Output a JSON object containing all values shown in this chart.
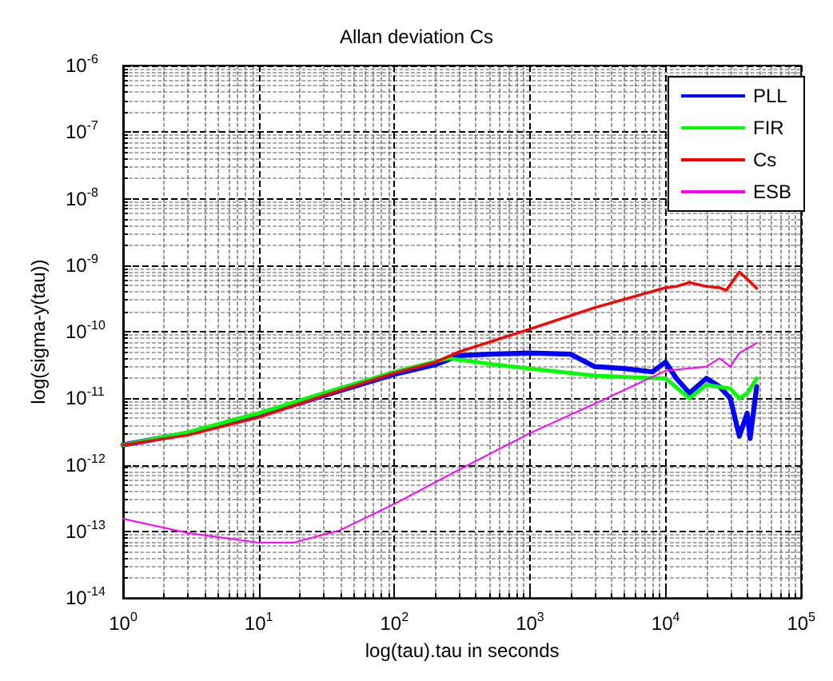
{
  "chart_data": {
    "type": "line",
    "title": "Allan deviation Cs",
    "xlabel": "log(tau).tau in seconds",
    "ylabel": "log(sigma-y(tau))",
    "log": "xy",
    "grid": true,
    "legend": "top right",
    "line_style": "solid",
    "marker": "none",
    "xlim": [
      1,
      100000
    ],
    "xticks": [
      {
        "value": 1,
        "label": "10$^{0}$"
      },
      {
        "value": 10,
        "label": "10$^{1}$"
      },
      {
        "value": 100,
        "label": "10$^{2}$"
      },
      {
        "value": 1000,
        "label": "10$^{3}$"
      },
      {
        "value": 10000,
        "label": "10$^{4}$"
      },
      {
        "value": 100000,
        "label": "10$^{5}$"
      }
    ],
    "ylim": [
      1e-14,
      1e-06
    ],
    "yticks": [
      {
        "value": 1e-14,
        "label": "10$^{-14}$"
      },
      {
        "value": 1e-13,
        "label": "10$^{-13}$"
      },
      {
        "value": 1e-12,
        "label": "10$^{-12}$"
      },
      {
        "value": 1e-11,
        "label": "10$^{-11}$"
      },
      {
        "value": 1e-10,
        "label": "10$^{-10}$"
      },
      {
        "value": 1e-09,
        "label": "10$^{-9}$"
      },
      {
        "value": 1e-08,
        "label": "10$^{-8}$"
      },
      {
        "value": 1e-07,
        "label": "10$^{-7}$"
      },
      {
        "value": 1e-06,
        "label": "10$^{-6}$"
      }
    ],
    "series": [
      {
        "name": "PLL",
        "color": "#0000ff",
        "x": [
          1,
          3,
          10,
          30,
          100,
          200,
          300,
          500,
          1000,
          2000,
          3000,
          5000,
          8000,
          10000,
          12000,
          15000,
          20000,
          25000,
          30000,
          35000,
          40000,
          42000,
          47000
        ],
        "values": [
          2e-12,
          3e-12,
          5.5e-12,
          1.1e-11,
          2.3e-11,
          3.2e-11,
          4.4e-11,
          4.6e-11,
          4.8e-11,
          4.6e-11,
          3e-11,
          2.8e-11,
          2.5e-11,
          3.5e-11,
          2e-11,
          1.2e-11,
          2e-11,
          1.5e-11,
          1e-11,
          2.7e-12,
          6e-12,
          2.5e-12,
          1.5e-11
        ]
      },
      {
        "name": "FIR",
        "color": "#00ff00",
        "x": [
          1,
          3,
          10,
          30,
          100,
          250,
          500,
          1000,
          3000,
          5000,
          10000,
          15000,
          20000,
          30000,
          35000,
          40000,
          47000
        ],
        "values": [
          2e-12,
          3.1e-12,
          6e-12,
          1.2e-11,
          2.5e-11,
          4e-11,
          3.3e-11,
          2.8e-11,
          2.2e-11,
          2.1e-11,
          2e-11,
          1e-11,
          1.6e-11,
          1.4e-11,
          1e-11,
          1.2e-11,
          2e-11
        ]
      },
      {
        "name": "Cs",
        "color": "#ff0000",
        "x": [
          1,
          3,
          10,
          30,
          100,
          200,
          300,
          1000,
          3000,
          10000,
          12000,
          15000,
          20000,
          25000,
          28000,
          35000,
          40000,
          47000
        ],
        "values": [
          2e-12,
          2.8e-12,
          5.2e-12,
          1.1e-11,
          2.4e-11,
          3.5e-11,
          5e-11,
          1.1e-10,
          2.3e-10,
          4.6e-10,
          4.8e-10,
          5.5e-10,
          4.8e-10,
          4.6e-10,
          4.2e-10,
          7.9e-10,
          6.2e-10,
          4.5e-10
        ]
      },
      {
        "name": "ESB",
        "color": "#ff00ff",
        "x": [
          1,
          3,
          10,
          18,
          40,
          100,
          300,
          1000,
          3000,
          10000,
          20000,
          25000,
          30000,
          35000,
          47000
        ],
        "values": [
          1.55e-13,
          9.5e-14,
          6.8e-14,
          6.8e-14,
          1.05e-13,
          2.6e-13,
          8.5e-13,
          3e-12,
          8.3e-12,
          2.6e-11,
          3e-11,
          4e-11,
          3e-11,
          4.8e-11,
          6.8e-11
        ]
      }
    ]
  }
}
